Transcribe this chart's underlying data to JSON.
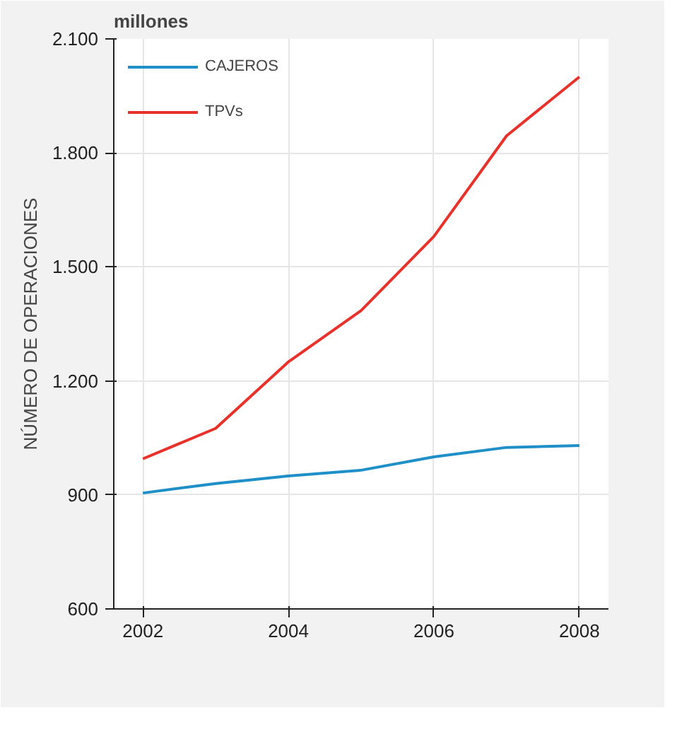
{
  "chart_data": {
    "type": "line",
    "ylabel": "NÚMERO DE OPERACIONES",
    "annotations": [
      "millones"
    ],
    "x": [
      2002,
      2003,
      2004,
      2005,
      2006,
      2007,
      2008
    ],
    "series": [
      {
        "name": "CAJEROS",
        "color": "#1f8fc8",
        "values": [
          905,
          930,
          950,
          965,
          1000,
          1025,
          1030
        ]
      },
      {
        "name": "TPVs",
        "color": "#e8312a",
        "values": [
          995,
          1075,
          1250,
          1385,
          1580,
          1845,
          2000
        ]
      }
    ],
    "xlim": [
      2001.6,
      2008.4
    ],
    "xticks": [
      2002,
      2004,
      2006,
      2008
    ],
    "ylim": [
      600,
      2100
    ],
    "yticks": [
      {
        "value": 600,
        "label": "600"
      },
      {
        "value": 900,
        "label": "900"
      },
      {
        "value": 1200,
        "label": "1.200"
      },
      {
        "value": 1500,
        "label": "1.500"
      },
      {
        "value": 1800,
        "label": "1.800"
      },
      {
        "value": 2100,
        "label": "2.100"
      }
    ],
    "grid": true,
    "legend": "top left",
    "marker": "none",
    "line_style": "solid"
  }
}
